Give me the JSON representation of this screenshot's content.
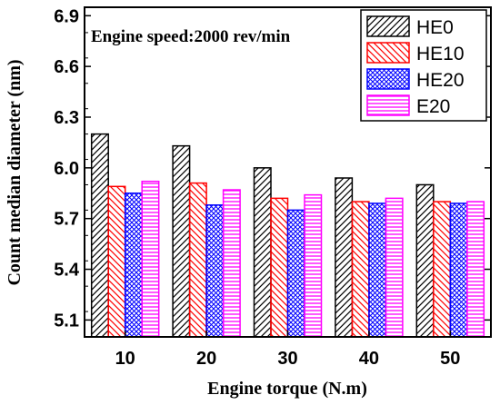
{
  "chart_data": {
    "type": "bar",
    "title": "",
    "annotation": "Engine speed:2000 rev/min",
    "xlabel": "Engine torque (N.m)",
    "ylabel": "Count median diameter (nm)",
    "categories": [
      "10",
      "20",
      "30",
      "40",
      "50"
    ],
    "ylim": [
      5.0,
      6.95
    ],
    "yticks": [
      "5.1",
      "5.4",
      "5.7",
      "6.0",
      "6.3",
      "6.6",
      "6.9"
    ],
    "grid": false,
    "legend_position": "top-right",
    "series": [
      {
        "name": "HE0",
        "values": [
          6.2,
          6.13,
          6.0,
          5.94,
          5.9
        ],
        "color": "#000000",
        "pattern": "diag-right"
      },
      {
        "name": "HE10",
        "values": [
          5.89,
          5.91,
          5.82,
          5.8,
          5.8
        ],
        "color": "#ff0000",
        "pattern": "diag-left"
      },
      {
        "name": "HE20",
        "values": [
          5.85,
          5.78,
          5.75,
          5.79,
          5.79
        ],
        "color": "#0000ff",
        "pattern": "crosshatch"
      },
      {
        "name": "E20",
        "values": [
          5.92,
          5.87,
          5.84,
          5.82,
          5.8
        ],
        "color": "#ff00ff",
        "pattern": "horizontal"
      }
    ]
  }
}
